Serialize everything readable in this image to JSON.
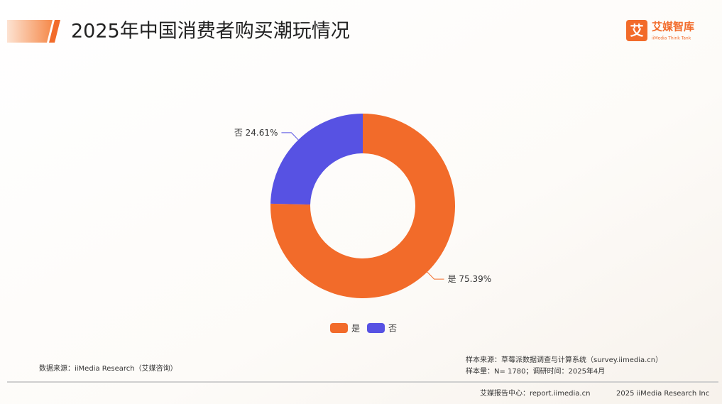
{
  "header": {
    "title": "2025年中国消费者购买潮玩情况",
    "logo_icon": "艾",
    "logo_name": "艾媒智库",
    "logo_sub": "iiMedia Think Tank"
  },
  "chart_data": {
    "type": "donut",
    "categories": [
      "是",
      "否"
    ],
    "values": [
      75.39,
      24.61
    ],
    "value_labels": [
      "75.39%",
      "24.61%"
    ],
    "colors": [
      "#f26b2a",
      "#5752e3"
    ]
  },
  "footer": {
    "source": "数据来源：iiMedia Research（艾媒咨询）",
    "sample_source": "样本来源：草莓派数据调查与计算系统（survey.iimedia.cn）",
    "sample_size": "样本量：N= 1780；调研时间：2025年4月",
    "report_center": "艾媒报告中心：report.iimedia.cn",
    "copyright": "2025 iiMedia Research Inc"
  }
}
